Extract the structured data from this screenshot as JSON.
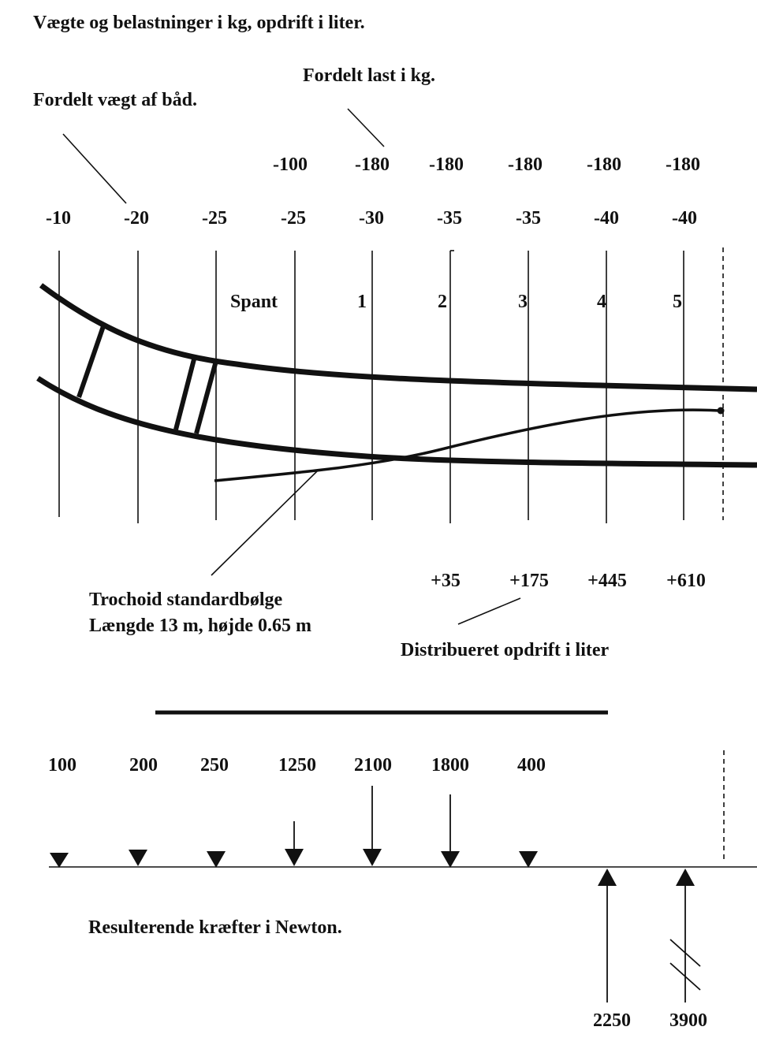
{
  "title": "Vægte og belastninger i kg, opdrift i liter.",
  "labels": {
    "distributed_load": "Fordelt last i kg.",
    "distributed_boat_weight": "Fordelt vægt af båd.",
    "frame": "Spant",
    "wave_line1": "Trochoid standardbølge",
    "wave_line2": "Længde 13 m, højde 0.65 m",
    "buoyancy": "Distribueret opdrift i liter",
    "resulting_forces": "Resulterende kræfter i Newton."
  },
  "load_row": [
    "-100",
    "-180",
    "-180",
    "-180",
    "-180",
    "-180"
  ],
  "weight_row": [
    "-10",
    "-20",
    "-25",
    "-25",
    "-30",
    "-35",
    "-35",
    "-40",
    "-40"
  ],
  "frame_numbers": [
    "1",
    "2",
    "3",
    "4",
    "5"
  ],
  "buoyancy_row": [
    "+35",
    "+175",
    "+445",
    "+610"
  ],
  "down_forces": [
    "100",
    "200",
    "250",
    "1250",
    "2100",
    "1800",
    "400"
  ],
  "up_forces": [
    "2250",
    "3900"
  ]
}
